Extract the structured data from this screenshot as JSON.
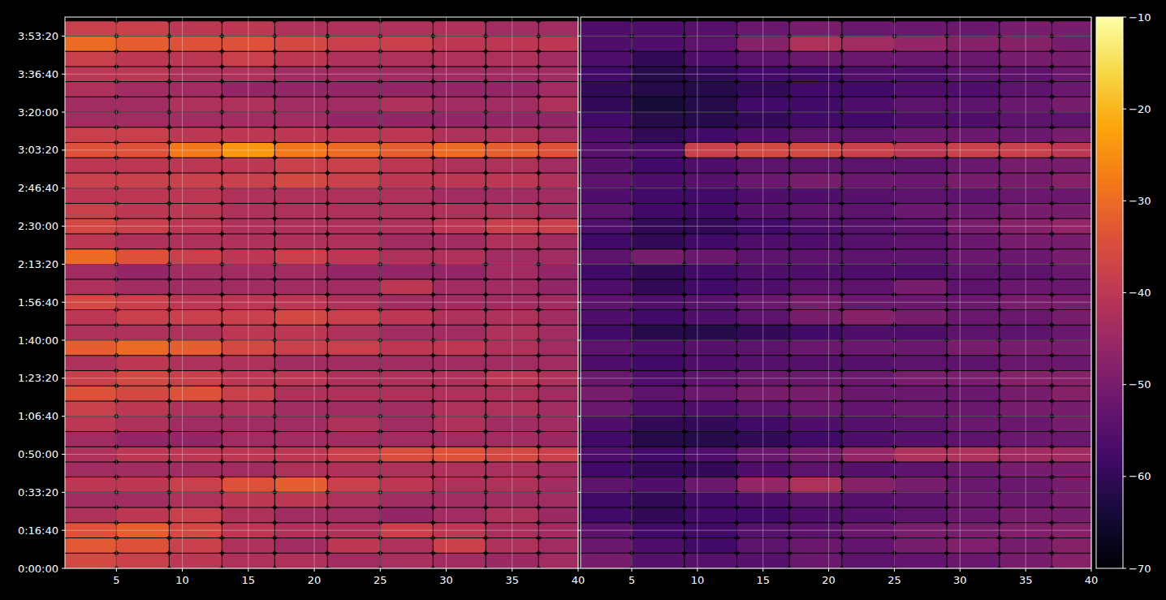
{
  "chart_data": [
    {
      "type": "heatmap",
      "grid": true,
      "x": [
        3,
        7,
        11,
        15,
        19,
        23,
        27,
        31,
        35,
        39
      ],
      "y": [
        200,
        600,
        1000,
        1400,
        1800,
        2200,
        2600,
        3000,
        3400,
        3800,
        4200,
        4600,
        5000,
        5400,
        5800,
        6200,
        6600,
        7000,
        7400,
        7800,
        8200,
        8600,
        9000,
        9400,
        9800,
        10200,
        10600,
        11000,
        11400,
        11800,
        12200,
        12600,
        13000,
        13400,
        13800,
        14200
      ],
      "xlim": [
        1.1,
        40
      ],
      "xticks": [
        5,
        10,
        15,
        20,
        25,
        30,
        35,
        40
      ],
      "ylim": [
        0,
        14500
      ],
      "yticks": [
        {
          "value": 0,
          "label": "0:00:00"
        },
        {
          "value": 1000,
          "label": "0:16:40"
        },
        {
          "value": 2000,
          "label": "0:33:20"
        },
        {
          "value": 3000,
          "label": "0:50:00"
        },
        {
          "value": 4000,
          "label": "1:06:40"
        },
        {
          "value": 5000,
          "label": "1:23:20"
        },
        {
          "value": 6000,
          "label": "1:40:00"
        },
        {
          "value": 7000,
          "label": "1:56:40"
        },
        {
          "value": 8000,
          "label": "2:13:20"
        },
        {
          "value": 9000,
          "label": "2:30:00"
        },
        {
          "value": 10000,
          "label": "2:46:40"
        },
        {
          "value": 11000,
          "label": "3:03:20"
        },
        {
          "value": 12000,
          "label": "3:20:00"
        },
        {
          "value": 13000,
          "label": "3:36:40"
        },
        {
          "value": 14000,
          "label": "3:53:20"
        }
      ],
      "values": [
        [
          -36,
          -38,
          -40,
          -42,
          -42,
          -44,
          -43,
          -44,
          -45,
          -44
        ],
        [
          -33,
          -34,
          -38,
          -42,
          -44,
          -40,
          -42,
          -38,
          -42,
          -44
        ],
        [
          -34,
          -32,
          -36,
          -40,
          -42,
          -42,
          -38,
          -40,
          -43,
          -44
        ],
        [
          -42,
          -40,
          -38,
          -42,
          -44,
          -44,
          -46,
          -44,
          -42,
          -45
        ],
        [
          -44,
          -44,
          -42,
          -40,
          -40,
          -42,
          -44,
          -44,
          -44,
          -44
        ],
        [
          -40,
          -40,
          -38,
          -34,
          -32,
          -38,
          -40,
          -42,
          -42,
          -44
        ],
        [
          -44,
          -44,
          -44,
          -44,
          -42,
          -42,
          -42,
          -42,
          -43,
          -44
        ],
        [
          -42,
          -40,
          -40,
          -40,
          -40,
          -38,
          -35,
          -34,
          -36,
          -38
        ],
        [
          -44,
          -46,
          -46,
          -44,
          -44,
          -44,
          -44,
          -44,
          -44,
          -45
        ],
        [
          -40,
          -42,
          -44,
          -44,
          -44,
          -42,
          -44,
          -42,
          -44,
          -44
        ],
        [
          -38,
          -40,
          -42,
          -42,
          -44,
          -44,
          -44,
          -42,
          -42,
          -44
        ],
        [
          -34,
          -36,
          -34,
          -38,
          -42,
          -42,
          -42,
          -42,
          -42,
          -44
        ],
        [
          -38,
          -36,
          -38,
          -40,
          -40,
          -42,
          -42,
          -42,
          -40,
          -42
        ],
        [
          -42,
          -40,
          -42,
          -42,
          -44,
          -44,
          -44,
          -44,
          -44,
          -44
        ],
        [
          -32,
          -30,
          -32,
          -36,
          -38,
          -38,
          -40,
          -40,
          -42,
          -44
        ],
        [
          -42,
          -42,
          -42,
          -40,
          -40,
          -42,
          -44,
          -44,
          -42,
          -44
        ],
        [
          -40,
          -38,
          -38,
          -38,
          -36,
          -38,
          -40,
          -42,
          -42,
          -44
        ],
        [
          -36,
          -38,
          -40,
          -40,
          -40,
          -42,
          -44,
          -44,
          -44,
          -44
        ],
        [
          -42,
          -44,
          -44,
          -44,
          -44,
          -44,
          -40,
          -44,
          -44,
          -46
        ],
        [
          -44,
          -46,
          -44,
          -44,
          -44,
          -46,
          -46,
          -46,
          -44,
          -46
        ],
        [
          -30,
          -34,
          -38,
          -40,
          -38,
          -40,
          -42,
          -42,
          -44,
          -44
        ],
        [
          -40,
          -42,
          -42,
          -42,
          -42,
          -42,
          -44,
          -44,
          -42,
          -44
        ],
        [
          -36,
          -38,
          -40,
          -42,
          -42,
          -42,
          -42,
          -40,
          -38,
          -38
        ],
        [
          -38,
          -40,
          -40,
          -42,
          -42,
          -42,
          -42,
          -42,
          -42,
          -44
        ],
        [
          -40,
          -40,
          -40,
          -42,
          -42,
          -42,
          -42,
          -44,
          -44,
          -44
        ],
        [
          -38,
          -38,
          -38,
          -38,
          -36,
          -38,
          -40,
          -40,
          -40,
          -42
        ],
        [
          -40,
          -40,
          -40,
          -40,
          -38,
          -38,
          -40,
          -42,
          -42,
          -44
        ],
        [
          -34,
          -34,
          -28,
          -24,
          -28,
          -30,
          -32,
          -30,
          -32,
          -34
        ],
        [
          -38,
          -38,
          -40,
          -40,
          -40,
          -40,
          -40,
          -42,
          -42,
          -44
        ],
        [
          -44,
          -44,
          -44,
          -44,
          -44,
          -46,
          -46,
          -46,
          -46,
          -46
        ],
        [
          -44,
          -44,
          -42,
          -42,
          -44,
          -44,
          -42,
          -44,
          -44,
          -42
        ],
        [
          -42,
          -44,
          -44,
          -46,
          -46,
          -46,
          -46,
          -46,
          -46,
          -44
        ],
        [
          -40,
          -40,
          -42,
          -42,
          -44,
          -44,
          -44,
          -44,
          -44,
          -44
        ],
        [
          -38,
          -40,
          -40,
          -38,
          -40,
          -42,
          -42,
          -42,
          -42,
          -44
        ],
        [
          -30,
          -32,
          -34,
          -34,
          -36,
          -38,
          -38,
          -40,
          -40,
          -40
        ],
        [
          -38,
          -38,
          -40,
          -40,
          -42,
          -42,
          -42,
          -42,
          -44,
          -44
        ]
      ]
    },
    {
      "type": "heatmap",
      "grid": true,
      "tick_labels": "x",
      "x": [
        3,
        7,
        11,
        15,
        19,
        23,
        27,
        31,
        35,
        39
      ],
      "y": [
        200,
        600,
        1000,
        1400,
        1800,
        2200,
        2600,
        3000,
        3400,
        3800,
        4200,
        4600,
        5000,
        5400,
        5800,
        6200,
        6600,
        7000,
        7400,
        7800,
        8200,
        8600,
        9000,
        9400,
        9800,
        10200,
        10600,
        11000,
        11400,
        11800,
        12200,
        12600,
        13000,
        13400,
        13800,
        14200
      ],
      "xlim": [
        1.1,
        40
      ],
      "xticks": [
        5,
        10,
        15,
        20,
        25,
        30,
        35,
        40
      ],
      "ylim": [
        0,
        14500
      ],
      "yticks": [
        {
          "value": 0,
          "label": "0:00:00"
        },
        {
          "value": 1000,
          "label": "0:16:40"
        },
        {
          "value": 2000,
          "label": "0:33:20"
        },
        {
          "value": 3000,
          "label": "0:50:00"
        },
        {
          "value": 4000,
          "label": "1:06:40"
        },
        {
          "value": 5000,
          "label": "1:23:20"
        },
        {
          "value": 6000,
          "label": "1:40:00"
        },
        {
          "value": 7000,
          "label": "1:56:40"
        },
        {
          "value": 8000,
          "label": "2:13:20"
        },
        {
          "value": 9000,
          "label": "2:30:00"
        },
        {
          "value": 10000,
          "label": "2:46:40"
        },
        {
          "value": 11000,
          "label": "3:03:20"
        },
        {
          "value": 12000,
          "label": "3:20:00"
        },
        {
          "value": 13000,
          "label": "3:36:40"
        },
        {
          "value": 14000,
          "label": "3:53:20"
        }
      ],
      "values": [
        [
          -50,
          -55,
          -55,
          -55,
          -52,
          -54,
          -53,
          -52,
          -50,
          -48
        ],
        [
          -52,
          -56,
          -58,
          -54,
          -52,
          -53,
          -50,
          -49,
          -50,
          -48
        ],
        [
          -54,
          -58,
          -58,
          -55,
          -54,
          -52,
          -50,
          -50,
          -49,
          -48
        ],
        [
          -58,
          -60,
          -58,
          -58,
          -56,
          -55,
          -54,
          -52,
          -50,
          -50
        ],
        [
          -58,
          -60,
          -58,
          -56,
          -54,
          -55,
          -54,
          -52,
          -52,
          -50
        ],
        [
          -54,
          -56,
          -52,
          -46,
          -42,
          -48,
          -50,
          -52,
          -52,
          -50
        ],
        [
          -58,
          -60,
          -60,
          -56,
          -54,
          -55,
          -54,
          -52,
          -50,
          -50
        ],
        [
          -56,
          -58,
          -56,
          -52,
          -50,
          -46,
          -42,
          -42,
          -44,
          -44
        ],
        [
          -58,
          -62,
          -62,
          -60,
          -58,
          -56,
          -55,
          -54,
          -52,
          -52
        ],
        [
          -56,
          -60,
          -60,
          -58,
          -56,
          -55,
          -54,
          -52,
          -52,
          -50
        ],
        [
          -52,
          -56,
          -56,
          -54,
          -52,
          -53,
          -52,
          -52,
          -50,
          -50
        ],
        [
          -50,
          -54,
          -52,
          -50,
          -50,
          -52,
          -52,
          -52,
          -50,
          -48
        ],
        [
          -52,
          -56,
          -54,
          -52,
          -52,
          -52,
          -50,
          -50,
          -48,
          -48
        ],
        [
          -56,
          -58,
          -56,
          -55,
          -55,
          -55,
          -54,
          -54,
          -52,
          -52
        ],
        [
          -54,
          -56,
          -55,
          -54,
          -52,
          -52,
          -52,
          -50,
          -50,
          -50
        ],
        [
          -58,
          -62,
          -62,
          -60,
          -58,
          -56,
          -56,
          -54,
          -54,
          -52
        ],
        [
          -56,
          -58,
          -56,
          -54,
          -50,
          -48,
          -50,
          -52,
          -52,
          -50
        ],
        [
          -54,
          -56,
          -55,
          -52,
          -50,
          -52,
          -52,
          -52,
          -50,
          -50
        ],
        [
          -56,
          -60,
          -58,
          -56,
          -54,
          -54,
          -50,
          -54,
          -52,
          -52
        ],
        [
          -58,
          -60,
          -58,
          -56,
          -56,
          -56,
          -56,
          -54,
          -54,
          -52
        ],
        [
          -54,
          -50,
          -52,
          -54,
          -54,
          -54,
          -54,
          -52,
          -52,
          -50
        ],
        [
          -58,
          -60,
          -58,
          -56,
          -56,
          -55,
          -54,
          -52,
          -50,
          -50
        ],
        [
          -56,
          -60,
          -60,
          -58,
          -56,
          -55,
          -54,
          -50,
          -48,
          -46
        ],
        [
          -54,
          -58,
          -58,
          -55,
          -54,
          -54,
          -52,
          -52,
          -50,
          -50
        ],
        [
          -56,
          -58,
          -58,
          -56,
          -56,
          -55,
          -54,
          -54,
          -52,
          -52
        ],
        [
          -54,
          -56,
          -55,
          -52,
          -50,
          -52,
          -52,
          -50,
          -50,
          -48
        ],
        [
          -55,
          -58,
          -56,
          -54,
          -54,
          -54,
          -54,
          -52,
          -50,
          -50
        ],
        [
          -55,
          -56,
          -38,
          -36,
          -36,
          -38,
          -40,
          -38,
          -38,
          -40
        ],
        [
          -56,
          -60,
          -58,
          -56,
          -54,
          -54,
          -52,
          -52,
          -52,
          -50
        ],
        [
          -58,
          -62,
          -62,
          -60,
          -58,
          -58,
          -56,
          -56,
          -54,
          -54
        ],
        [
          -60,
          -64,
          -62,
          -58,
          -58,
          -56,
          -54,
          -54,
          -52,
          -50
        ],
        [
          -60,
          -62,
          -62,
          -60,
          -58,
          -58,
          -56,
          -56,
          -54,
          -52
        ],
        [
          -58,
          -62,
          -60,
          -58,
          -58,
          -56,
          -56,
          -54,
          -54,
          -52
        ],
        [
          -56,
          -60,
          -56,
          -54,
          -52,
          -52,
          -52,
          -52,
          -50,
          -50
        ],
        [
          -56,
          -56,
          -54,
          -48,
          -42,
          -44,
          -46,
          -48,
          -48,
          -50
        ],
        [
          -56,
          -56,
          -55,
          -52,
          -50,
          -52,
          -52,
          -52,
          -50,
          -50
        ]
      ],
      "colorbar": {
        "range": [
          -70,
          -10
        ],
        "ticks": [
          {
            "value": -70,
            "label": "−70"
          },
          {
            "value": -60,
            "label": "−60"
          },
          {
            "value": -50,
            "label": "−50"
          },
          {
            "value": -40,
            "label": "−40"
          },
          {
            "value": -30,
            "label": "−30"
          },
          {
            "value": -20,
            "label": "−20"
          },
          {
            "value": -10,
            "label": "−10"
          }
        ]
      }
    }
  ]
}
